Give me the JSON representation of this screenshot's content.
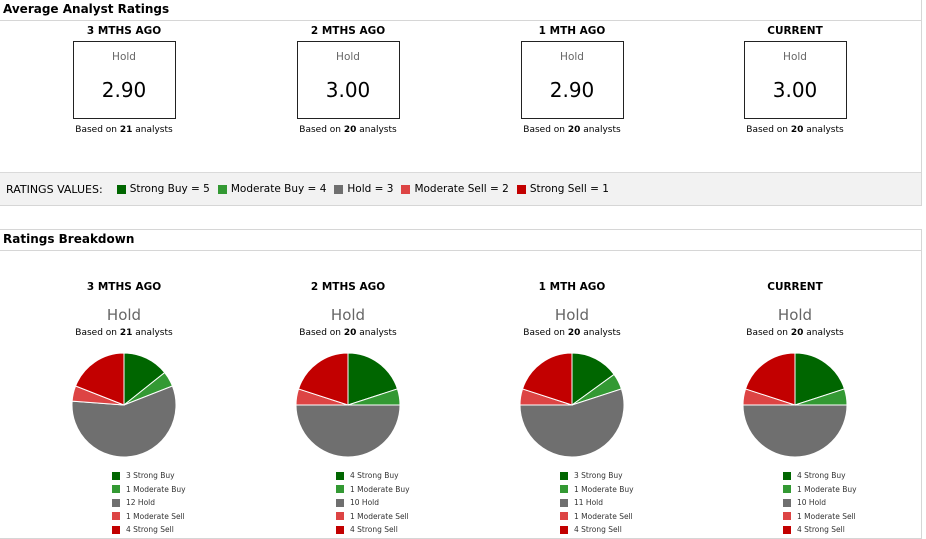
{
  "colors": {
    "strong_buy": "#006600",
    "moderate_buy": "#339933",
    "hold": "#6f6f6f",
    "moderate_sell": "#dd4444",
    "strong_sell": "#c20000"
  },
  "average": {
    "title": "Average Analyst Ratings",
    "periods": [
      {
        "label": "3 MTHS AGO",
        "rating": "Hold",
        "value": "2.90",
        "based_prefix": "Based on ",
        "analysts": "21",
        "based_suffix": " analysts"
      },
      {
        "label": "2 MTHS AGO",
        "rating": "Hold",
        "value": "3.00",
        "based_prefix": "Based on ",
        "analysts": "20",
        "based_suffix": " analysts"
      },
      {
        "label": "1 MTH AGO",
        "rating": "Hold",
        "value": "2.90",
        "based_prefix": "Based on ",
        "analysts": "20",
        "based_suffix": " analysts"
      },
      {
        "label": "CURRENT",
        "rating": "Hold",
        "value": "3.00",
        "based_prefix": "Based on ",
        "analysts": "20",
        "based_suffix": " analysts"
      }
    ]
  },
  "ratings_values": {
    "label": "RATINGS VALUES:",
    "items": [
      "Strong Buy = 5",
      "Moderate Buy = 4",
      "Hold = 3",
      "Moderate Sell = 2",
      "Strong Sell = 1"
    ]
  },
  "breakdown": {
    "title": "Ratings Breakdown"
  },
  "chart_data": {
    "type": "pie",
    "title": "Ratings Breakdown",
    "categories": [
      "Strong Buy",
      "Moderate Buy",
      "Hold",
      "Moderate Sell",
      "Strong Sell"
    ],
    "series": [
      {
        "name": "3 MTHS AGO",
        "rating": "Hold",
        "analysts": "21",
        "values": [
          3,
          1,
          12,
          1,
          4
        ],
        "legend": [
          "3 Strong Buy",
          "1 Moderate Buy",
          "12 Hold",
          "1 Moderate Sell",
          "4 Strong Sell"
        ]
      },
      {
        "name": "2 MTHS AGO",
        "rating": "Hold",
        "analysts": "20",
        "values": [
          4,
          1,
          10,
          1,
          4
        ],
        "legend": [
          "4 Strong Buy",
          "1 Moderate Buy",
          "10 Hold",
          "1 Moderate Sell",
          "4 Strong Sell"
        ]
      },
      {
        "name": "1 MTH AGO",
        "rating": "Hold",
        "analysts": "20",
        "values": [
          3,
          1,
          11,
          1,
          4
        ],
        "legend": [
          "3 Strong Buy",
          "1 Moderate Buy",
          "11 Hold",
          "1 Moderate Sell",
          "4 Strong Sell"
        ]
      },
      {
        "name": "CURRENT",
        "rating": "Hold",
        "analysts": "20",
        "values": [
          4,
          1,
          10,
          1,
          4
        ],
        "legend": [
          "4 Strong Buy",
          "1 Moderate Buy",
          "10 Hold",
          "1 Moderate Sell",
          "4 Strong Sell"
        ]
      }
    ]
  }
}
